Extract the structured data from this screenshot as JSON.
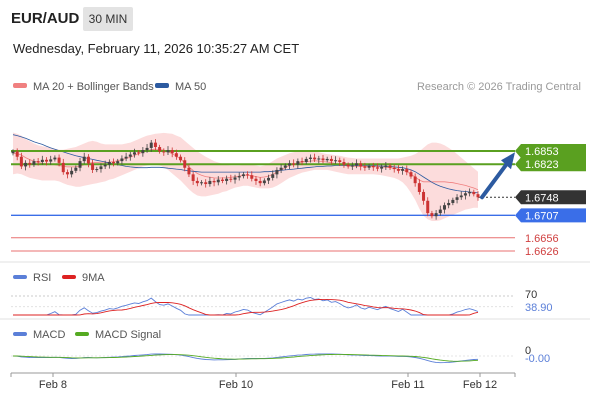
{
  "header": {
    "symbol": "EUR/AUD",
    "timeframe": "30 MIN",
    "datetime": "Wednesday, February 11, 2026 10:35:27 AM CET"
  },
  "legend": {
    "ma20_label": "MA 20 + Bollinger Bands",
    "ma50_label": "MA 50",
    "copyright": "Research © 2026 Trading Central",
    "ma20_color": "#f08080",
    "ma50_color": "#2c5aa0"
  },
  "colors": {
    "resistance": "#5aa020",
    "support": "#3a6ee8",
    "target_red": "#e87070",
    "current": "#333333",
    "arrow": "#2c5aa0",
    "candle_up": "#444444",
    "candle_down": "#cc3333",
    "band_fill": "#fbd0d0",
    "rsi": "#5b7fd8",
    "rsi_ma": "#dd2222",
    "macd": "#5b7fd8",
    "macd_signal": "#55aa22"
  },
  "chart_data": [
    {
      "type": "candlestick",
      "title": "",
      "price_levels": [
        {
          "name": "resistance-1",
          "value": 1.6853,
          "label": "1.6853",
          "style": "green"
        },
        {
          "name": "resistance-2",
          "value": 1.6823,
          "label": "1.6823",
          "style": "green"
        },
        {
          "name": "current-price",
          "value": 1.6748,
          "label": "1.6748",
          "style": "dark"
        },
        {
          "name": "support-1",
          "value": 1.6707,
          "label": "1.6707",
          "style": "blue"
        },
        {
          "name": "target-1",
          "value": 1.6656,
          "label": "1.6656",
          "style": "red"
        },
        {
          "name": "target-2",
          "value": 1.6626,
          "label": "1.6626",
          "style": "red"
        }
      ],
      "x_ticks": [
        "Feb 8",
        "Feb 10",
        "Feb 11",
        "Feb 12"
      ],
      "close": [
        1.6852,
        1.684,
        1.6818,
        1.6826,
        1.6822,
        1.683,
        1.6828,
        1.6833,
        1.6829,
        1.6834,
        1.6838,
        1.6826,
        1.6805,
        1.68,
        1.6808,
        1.6815,
        1.683,
        1.684,
        1.6825,
        1.681,
        1.6812,
        1.6818,
        1.6822,
        1.6828,
        1.6825,
        1.683,
        1.6836,
        1.684,
        1.6845,
        1.685,
        1.6848,
        1.6855,
        1.686,
        1.6872,
        1.6862,
        1.6852,
        1.685,
        1.6855,
        1.6848,
        1.684,
        1.6832,
        1.6815,
        1.68,
        1.6785,
        1.678,
        1.6782,
        1.6778,
        1.6785,
        1.6782,
        1.6788,
        1.6785,
        1.679,
        1.6788,
        1.6793,
        1.6796,
        1.68,
        1.6798,
        1.679,
        1.6785,
        1.678,
        1.6786,
        1.6792,
        1.68,
        1.681,
        1.6815,
        1.682,
        1.6825,
        1.6822,
        1.683,
        1.6828,
        1.6835,
        1.6838,
        1.6834,
        1.6836,
        1.6832,
        1.6835,
        1.683,
        1.6832,
        1.6828,
        1.6822,
        1.6818,
        1.682,
        1.6825,
        1.6818,
        1.6815,
        1.6819,
        1.6816,
        1.6813,
        1.6817,
        1.682,
        1.6815,
        1.6812,
        1.6808,
        1.6812,
        1.6805,
        1.6795,
        1.678,
        1.676,
        1.674,
        1.6712,
        1.6705,
        1.6712,
        1.672,
        1.673,
        1.6735,
        1.6742,
        1.6748,
        1.6752,
        1.6757,
        1.676,
        1.6755,
        1.6748
      ],
      "bollinger_upper": [
        1.6895,
        1.6892,
        1.6888,
        1.688,
        1.6875,
        1.687,
        1.6866,
        1.6864,
        1.6862,
        1.686,
        1.6858,
        1.6856,
        1.6856,
        1.6858,
        1.686,
        1.6862,
        1.6866,
        1.687,
        1.6874,
        1.6876,
        1.6874,
        1.687,
        1.6868,
        1.6868,
        1.6868,
        1.6868,
        1.6868,
        1.687,
        1.6872,
        1.6876,
        1.688,
        1.6884,
        1.6888,
        1.689,
        1.6892,
        1.6893,
        1.6894,
        1.6893,
        1.6892,
        1.6888,
        1.6884,
        1.6876,
        1.6868,
        1.686,
        1.6852,
        1.6846,
        1.684,
        1.6835,
        1.683,
        1.6827,
        1.6824,
        1.6822,
        1.682,
        1.682,
        1.682,
        1.6822,
        1.6822,
        1.6822,
        1.682,
        1.6818,
        1.682,
        1.6824,
        1.683,
        1.6836,
        1.684,
        1.6844,
        1.6848,
        1.685,
        1.6852,
        1.6852,
        1.6852,
        1.6852,
        1.6852,
        1.685,
        1.6848,
        1.6846,
        1.6845,
        1.6843,
        1.6842,
        1.684,
        1.6838,
        1.6837,
        1.6836,
        1.6836,
        1.6836,
        1.6836,
        1.6836,
        1.6836,
        1.6836,
        1.6836,
        1.6836,
        1.6836,
        1.6836,
        1.6838,
        1.684,
        1.6842,
        1.6846,
        1.6852,
        1.686,
        1.6868,
        1.6872,
        1.6872,
        1.687,
        1.6866,
        1.686,
        1.6854,
        1.6846,
        1.6838,
        1.683,
        1.6822,
        1.6814,
        1.6806
      ],
      "bollinger_lower": [
        1.68,
        1.6802,
        1.68,
        1.6796,
        1.6792,
        1.679,
        1.6788,
        1.6786,
        1.6786,
        1.6786,
        1.6786,
        1.6784,
        1.678,
        1.6776,
        1.6774,
        1.6772,
        1.6772,
        1.6774,
        1.6776,
        1.6778,
        1.678,
        1.6782,
        1.6784,
        1.6788,
        1.679,
        1.6794,
        1.6798,
        1.6802,
        1.6806,
        1.681,
        1.6814,
        1.6818,
        1.682,
        1.6822,
        1.6822,
        1.682,
        1.6816,
        1.681,
        1.6802,
        1.6794,
        1.6786,
        1.6776,
        1.6766,
        1.6758,
        1.6752,
        1.675,
        1.675,
        1.6752,
        1.6754,
        1.6756,
        1.676,
        1.6762,
        1.6766,
        1.677,
        1.6772,
        1.6774,
        1.6774,
        1.6772,
        1.677,
        1.6768,
        1.6768,
        1.6768,
        1.677,
        1.6774,
        1.678,
        1.6786,
        1.6792,
        1.6796,
        1.68,
        1.6804,
        1.6806,
        1.6808,
        1.681,
        1.681,
        1.681,
        1.681,
        1.6808,
        1.6806,
        1.6804,
        1.6802,
        1.68,
        1.68,
        1.68,
        1.68,
        1.68,
        1.68,
        1.68,
        1.6799,
        1.6798,
        1.6796,
        1.6794,
        1.6792,
        1.6788,
        1.6782,
        1.6772,
        1.6758,
        1.6742,
        1.6722,
        1.6706,
        1.6698,
        1.6694,
        1.6694,
        1.6696,
        1.67,
        1.6704,
        1.6708,
        1.6712,
        1.6716,
        1.672,
        1.6722,
        1.6724,
        1.6724
      ],
      "ma50": [
        1.689,
        1.6888,
        1.6885,
        1.6882,
        1.6878,
        1.6874,
        1.6871,
        1.6868,
        1.6864,
        1.686,
        1.6857,
        1.6854,
        1.6851,
        1.6848,
        1.6845,
        1.6842,
        1.684,
        1.6838,
        1.6836,
        1.6834,
        1.6832,
        1.683,
        1.6828,
        1.6826,
        1.6824,
        1.6822,
        1.682,
        1.6818,
        1.6817,
        1.6816,
        1.6815,
        1.6815,
        1.6815,
        1.6816,
        1.6816,
        1.6816,
        1.6815,
        1.6814,
        1.6813,
        1.6812,
        1.6811,
        1.6809,
        1.6808,
        1.6807,
        1.6806,
        1.6805,
        1.6805,
        1.6805,
        1.6805,
        1.6805,
        1.6805,
        1.6805,
        1.6805,
        1.6805,
        1.6805,
        1.6805,
        1.6805,
        1.6805,
        1.6805,
        1.6805,
        1.6806,
        1.6806,
        1.6807,
        1.6808,
        1.6809,
        1.681,
        1.6811,
        1.6812,
        1.6813,
        1.6814,
        1.6815,
        1.6816,
        1.6817,
        1.6818,
        1.6818,
        1.6819,
        1.6819,
        1.682,
        1.682,
        1.682,
        1.682,
        1.682,
        1.682,
        1.682,
        1.682,
        1.682,
        1.682,
        1.6819,
        1.6819,
        1.6818,
        1.6818,
        1.6817,
        1.6816,
        1.6815,
        1.6813,
        1.681,
        1.6806,
        1.68,
        1.6794,
        1.6788,
        1.6782,
        1.6777,
        1.6773,
        1.677,
        1.6767,
        1.6765,
        1.6763,
        1.6762,
        1.6761,
        1.676,
        1.6759,
        1.6758
      ]
    },
    {
      "type": "line",
      "title": "RSI",
      "legend": [
        "RSI",
        "9MA"
      ],
      "level_label": "70",
      "value_label": "38.90",
      "ylim": [
        30,
        75
      ]
    },
    {
      "type": "line",
      "title": "MACD",
      "legend": [
        "MACD",
        "MACD Signal"
      ],
      "level_label": "0",
      "value_label": "-0.00"
    }
  ]
}
